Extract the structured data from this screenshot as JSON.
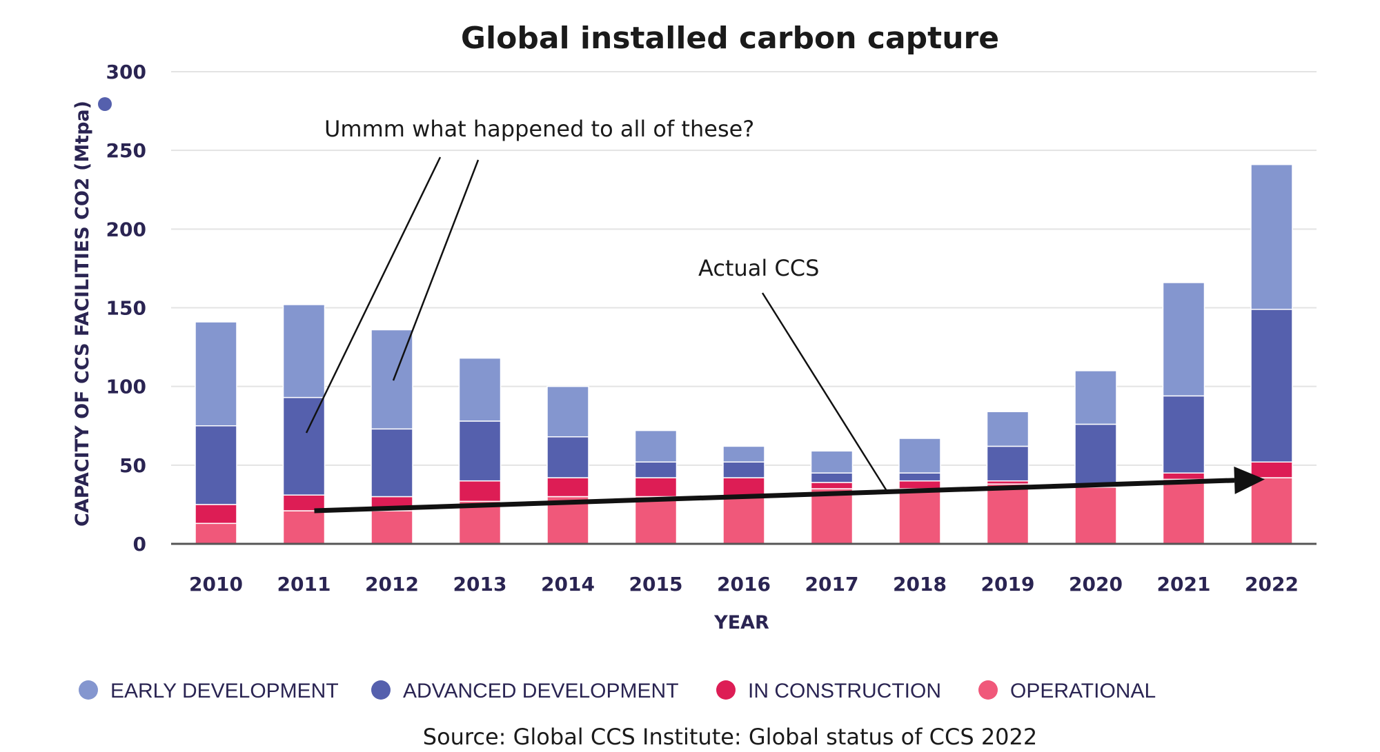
{
  "chart_data": {
    "type": "bar",
    "stacked": true,
    "title": "Global installed carbon capture",
    "xlabel": "YEAR",
    "ylabel": "CAPACITY OF CCS FACILITIES CO2 (Mtpa)",
    "ylim": [
      0,
      300
    ],
    "yticks": [
      0,
      50,
      100,
      150,
      200,
      250,
      300
    ],
    "grid": true,
    "legend_position": "bottom",
    "categories": [
      "2010",
      "2011",
      "2012",
      "2013",
      "2014",
      "2015",
      "2016",
      "2017",
      "2018",
      "2019",
      "2020",
      "2021",
      "2022"
    ],
    "series": [
      {
        "name": "OPERATIONAL",
        "color": "#f0587a",
        "values": [
          13,
          21,
          21,
          27,
          30,
          30,
          30,
          35,
          35,
          38,
          36,
          41,
          42
        ]
      },
      {
        "name": "IN CONSTRUCTION",
        "color": "#dd1d55",
        "values": [
          12,
          10,
          9,
          13,
          12,
          12,
          12,
          4,
          5,
          2,
          0,
          4,
          10
        ]
      },
      {
        "name": "ADVANCED DEVELOPMENT",
        "color": "#5560ad",
        "values": [
          50,
          62,
          43,
          38,
          26,
          10,
          10,
          6,
          5,
          22,
          40,
          49,
          97
        ]
      },
      {
        "name": "EARLY DEVELOPMENT",
        "color": "#8496cf",
        "values": [
          66,
          59,
          63,
          40,
          32,
          20,
          10,
          14,
          22,
          22,
          34,
          72,
          92
        ]
      }
    ],
    "annotations": [
      {
        "text": "Ummm what happened to all of these?"
      },
      {
        "text": "Actual CCS"
      }
    ],
    "trend_arrow": {
      "from": {
        "category": "2011",
        "value": 21
      },
      "to": {
        "category": "2022",
        "value": 41
      }
    }
  },
  "source": "Source: Global CCS Institute: Global status of CCS 2022",
  "colors": {
    "axis_text": "#2a2452",
    "grid": "#e3e3e3",
    "arrow": "#111111"
  }
}
